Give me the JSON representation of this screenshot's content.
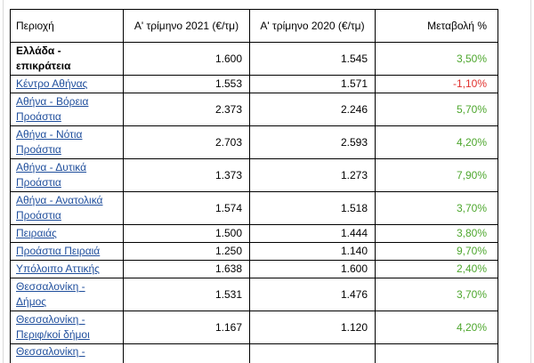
{
  "table": {
    "headers": {
      "region": "Περιοχή",
      "q1_2021": "Α' τρίμηνο 2021 (€/τμ)",
      "q1_2020": "Α' τρίμηνο 2020 (€/τμ)",
      "change": "Μεταβολή %"
    },
    "rows": [
      {
        "region": "Ελλάδα - επικράτεια",
        "q1_2021": "1.600",
        "q1_2020": "1.545",
        "change": "3,50%"
      },
      {
        "region": "Κέντρο Αθήνας",
        "q1_2021": "1.553",
        "q1_2020": "1.571",
        "change": "-1,10%"
      },
      {
        "region": "Αθήνα - Βόρεια Προάστια",
        "q1_2021": "2.373",
        "q1_2020": "2.246",
        "change": "5,70%"
      },
      {
        "region": "Αθήνα - Νότια Προάστια",
        "q1_2021": "2.703",
        "q1_2020": "2.593",
        "change": "4,20%"
      },
      {
        "region": "Αθήνα - Δυτικά Προάστια",
        "q1_2021": "1.373",
        "q1_2020": "1.273",
        "change": "7,90%"
      },
      {
        "region": "Αθήνα - Ανατολικά Προάστια",
        "q1_2021": "1.574",
        "q1_2020": "1.518",
        "change": "3,70%"
      },
      {
        "region": "Πειραιάς",
        "q1_2021": "1.500",
        "q1_2020": "1.444",
        "change": "3,80%"
      },
      {
        "region": "Προάστια Πειραιά",
        "q1_2021": "1.250",
        "q1_2020": "1.140",
        "change": "9,70%"
      },
      {
        "region": "Υπόλοιπο Αττικής",
        "q1_2021": "1.638",
        "q1_2020": "1.600",
        "change": "2,40%"
      },
      {
        "region": "Θεσσαλονίκη - Δήμος",
        "q1_2021": "1.531",
        "q1_2020": "1.476",
        "change": "3,70%"
      },
      {
        "region": "Θεσσαλονίκη - Περιφ/κοί δήμοι",
        "q1_2021": "1.167",
        "q1_2020": "1.120",
        "change": "4,20%"
      },
      {
        "region": "Θεσσαλονίκη -",
        "q1_2021": "",
        "q1_2020": "",
        "change": ""
      }
    ]
  },
  "colors": {
    "positive": "#4ea72e",
    "negative": "#e1322f",
    "link": "#1f4e9c"
  }
}
